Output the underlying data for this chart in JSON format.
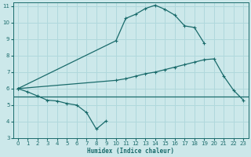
{
  "xlabel": "Humidex (Indice chaleur)",
  "xlim": [
    -0.5,
    23.5
  ],
  "ylim": [
    3,
    11.2
  ],
  "yticks": [
    3,
    4,
    5,
    6,
    7,
    8,
    9,
    10,
    11
  ],
  "xticks": [
    0,
    1,
    2,
    3,
    4,
    5,
    6,
    7,
    8,
    9,
    10,
    11,
    12,
    13,
    14,
    15,
    16,
    17,
    18,
    19,
    20,
    21,
    22,
    23
  ],
  "background_color": "#cce8ea",
  "grid_color": "#b0d8dc",
  "line_color": "#1a6b6b",
  "line_dip_x": [
    0,
    1,
    2,
    3,
    4,
    5,
    6,
    7,
    8,
    9
  ],
  "line_dip_y": [
    6.0,
    5.8,
    5.55,
    5.3,
    5.25,
    5.1,
    5.0,
    4.55,
    3.55,
    4.05
  ],
  "line_diag_x": [
    0,
    10,
    11,
    12,
    13,
    14,
    15,
    16,
    17,
    18,
    19,
    20,
    21,
    22,
    23
  ],
  "line_diag_y": [
    6.0,
    6.5,
    6.6,
    6.75,
    6.9,
    7.0,
    7.15,
    7.3,
    7.45,
    7.6,
    7.75,
    7.8,
    6.75,
    5.9,
    5.3
  ],
  "line_peak_x": [
    0,
    10,
    11,
    12,
    13,
    14,
    15,
    16,
    17,
    18,
    19
  ],
  "line_peak_y": [
    6.0,
    8.9,
    10.25,
    10.5,
    10.85,
    11.05,
    10.8,
    10.45,
    9.8,
    9.7,
    8.75
  ],
  "flat_line_y": 5.5
}
